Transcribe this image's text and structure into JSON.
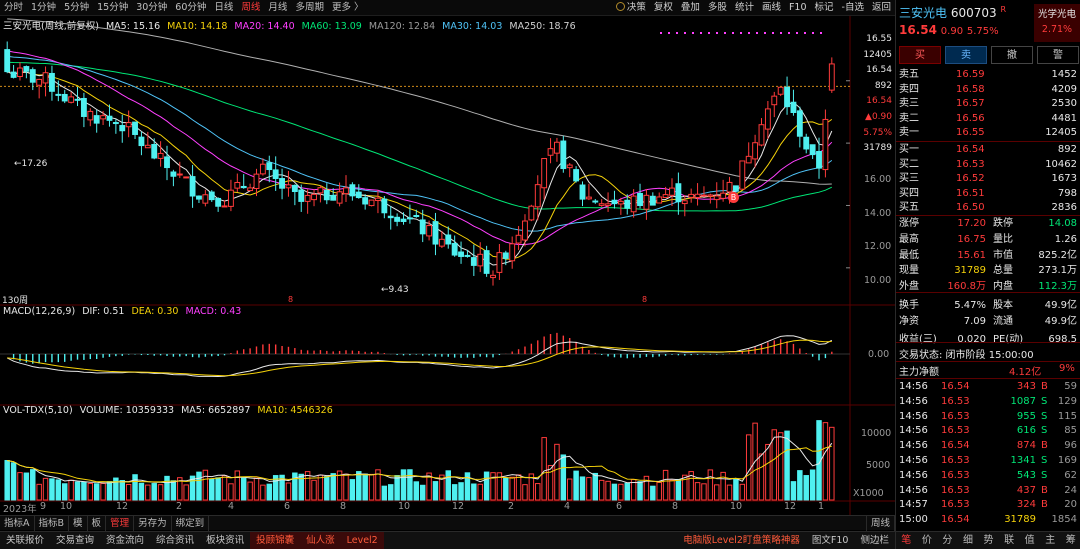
{
  "toolbar": {
    "periods": [
      "分时",
      "1分钟",
      "5分钟",
      "15分钟",
      "30分钟",
      "60分钟",
      "日线",
      "周线",
      "月线",
      "多周期",
      "更多 〉"
    ],
    "active_period": "周线",
    "right_tools": [
      "决策",
      "复权",
      "叠加",
      "多股",
      "统计",
      "画线",
      "F10",
      "标记",
      "-自选",
      "返回"
    ]
  },
  "legend_main": {
    "name": "三安光电(周线,前复权)",
    "ma5": "MA5: 15.16",
    "ma10": "MA10: 14.18",
    "ma20": "MA20: 14.40",
    "ma60": "MA60: 13.09",
    "ma120": "MA120: 12.84",
    "ma30": "MA30: 14.03",
    "ma250": "MA250: 18.76"
  },
  "price_axis": {
    "labels": [
      "16.00",
      "14.00",
      "12.00",
      "10.00"
    ],
    "info_block": [
      "16.55",
      "12405",
      "16.54",
      "892",
      "16.54",
      "▲0.90",
      "5.75%",
      "31789"
    ]
  },
  "annotations": {
    "high": "17.26",
    "low": "←9.43",
    "period_count": "130周",
    "b_marker": "B"
  },
  "legend_macd": {
    "title": "MACD(12,26,9)",
    "dif": "DIF: 0.51",
    "dea": "DEA: 0.30",
    "macd": "MACD: 0.43",
    "zero": "0.00"
  },
  "legend_vol": {
    "title": "VOL-TDX(5,10)",
    "volume": "VOLUME: 10359333",
    "ma5": "MA5: 6652897",
    "ma10": "MA10: 4546326",
    "axis": [
      "10000",
      "5000"
    ],
    "unit": "X1000"
  },
  "x_axis": [
    "2023年",
    "9",
    "10",
    "12",
    "2",
    "4",
    "6",
    "8",
    "10",
    "12",
    "2",
    "4",
    "6",
    "8",
    "10",
    "12",
    "1"
  ],
  "colors": {
    "up": "#ff3b3b",
    "down": "#4ff0f0",
    "ma5": "#e8e8e8",
    "ma10": "#f5d20a",
    "ma20": "#ff40ff",
    "ma60": "#00e676",
    "ma120": "#b0b0b0",
    "ma30": "#4fc3f7"
  },
  "chart_data": {
    "type": "candlestick",
    "title": "三安光电(周线,前复权)",
    "period": "weekly",
    "ylim": [
      9.0,
      17.5
    ],
    "high": 17.26,
    "low": 9.43,
    "last_close": 16.54,
    "moving_averages": {
      "MA5": 15.16,
      "MA10": 14.18,
      "MA20": 14.4,
      "MA30": 14.03,
      "MA60": 13.09,
      "MA120": 12.84,
      "MA250": 18.76
    },
    "macd": {
      "DIF": 0.51,
      "DEA": 0.3,
      "MACD": 0.43
    },
    "volume": {
      "VOLUME": 10359333,
      "MA5": 6652897,
      "MA10": 4546326
    }
  },
  "panel": {
    "name": "三安光电",
    "code": "600703",
    "tag": "R",
    "price": "16.54",
    "change": "0.90",
    "pct": "5.75%",
    "sector": "光学光电",
    "sector_pct": "2.71%",
    "buttons": [
      "买",
      "卖",
      "撤",
      "警"
    ],
    "asks": [
      [
        "卖五",
        "16.59",
        "1452"
      ],
      [
        "卖四",
        "16.58",
        "4209"
      ],
      [
        "卖三",
        "16.57",
        "2530"
      ],
      [
        "卖二",
        "16.56",
        "4481"
      ],
      [
        "卖一",
        "16.55",
        "12405"
      ]
    ],
    "bids": [
      [
        "买一",
        "16.54",
        "892"
      ],
      [
        "买二",
        "16.53",
        "10462"
      ],
      [
        "买三",
        "16.52",
        "1673"
      ],
      [
        "买四",
        "16.51",
        "798"
      ],
      [
        "买五",
        "16.50",
        "2836"
      ]
    ],
    "stats": [
      [
        "涨停",
        "17.20",
        "跌停",
        "14.08"
      ],
      [
        "最高",
        "16.75",
        "量比",
        "1.26"
      ],
      [
        "最低",
        "15.61",
        "市值",
        "825.2亿"
      ],
      [
        "现量",
        "31789",
        "总量",
        "273.1万"
      ],
      [
        "外盘",
        "160.8万",
        "内盘",
        "112.3万"
      ],
      [
        "换手",
        "5.47%",
        "股本",
        "49.9亿"
      ],
      [
        "净资",
        "7.09",
        "流通",
        "49.9亿"
      ],
      [
        "收益(三)",
        "0.020",
        "PE(动)",
        "698.5"
      ]
    ],
    "trade_status": "交易状态: 闭市阶段 15:00:00",
    "main_net_label": "主力净额",
    "main_net": "4.12亿",
    "main_net_pct": "9%",
    "ticks": [
      [
        "14:56",
        "16.54",
        "343",
        "B",
        "59"
      ],
      [
        "14:56",
        "16.53",
        "1087",
        "S",
        "129"
      ],
      [
        "14:56",
        "16.53",
        "955",
        "S",
        "115"
      ],
      [
        "14:56",
        "16.53",
        "616",
        "S",
        "85"
      ],
      [
        "14:56",
        "16.54",
        "874",
        "B",
        "96"
      ],
      [
        "14:56",
        "16.53",
        "1341",
        "S",
        "169"
      ],
      [
        "14:56",
        "16.53",
        "543",
        "S",
        "62"
      ],
      [
        "14:56",
        "16.53",
        "437",
        "B",
        "24"
      ],
      [
        "14:57",
        "16.53",
        "324",
        "B",
        "20"
      ],
      [
        "15:00",
        "16.54",
        "31789",
        "",
        "1854"
      ]
    ],
    "bottom_tabs": [
      "笔",
      "价",
      "分",
      "细",
      "势",
      "联",
      "值",
      "主",
      "筹"
    ]
  },
  "tabs": [
    "指标A",
    "指标B",
    "模",
    "板",
    "管理",
    "另存为",
    "绑定到"
  ],
  "tab_right": "周线",
  "status": [
    "关联报价",
    "交易查询",
    "资金流向",
    "综合资讯",
    "板块资讯",
    "投顾锦囊",
    "仙人涨",
    "Level2",
    "电脑版Level2盯盘策略神器",
    "图文F10",
    "侧边栏"
  ]
}
